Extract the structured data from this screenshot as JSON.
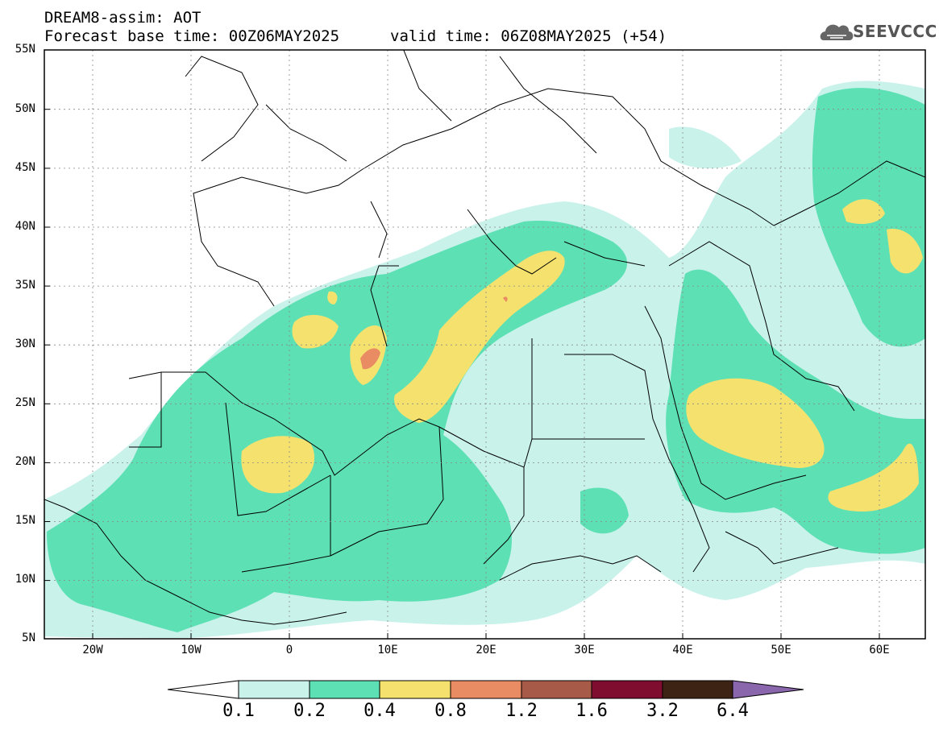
{
  "header": {
    "title": "DREAM8-assim: AOT",
    "base_time": "Forecast base time: 00Z06MAY2025",
    "valid_time": "valid time: 06Z08MAY2025 (+54)",
    "logo_text": "SEEVCCC"
  },
  "axes": {
    "lat_labels": [
      "55N",
      "50N",
      "45N",
      "40N",
      "35N",
      "30N",
      "25N",
      "20N",
      "15N",
      "10N",
      "5N"
    ],
    "lon_labels": [
      "20W",
      "10W",
      "0",
      "10E",
      "20E",
      "30E",
      "40E",
      "50E",
      "60E"
    ]
  },
  "colorbar": {
    "labels": [
      "0.1",
      "0.2",
      "0.4",
      "0.8",
      "1.2",
      "1.6",
      "3.2",
      "6.4"
    ],
    "colors": [
      "#ffffff",
      "#c9f2ea",
      "#5ee0b5",
      "#f5e26e",
      "#e98c63",
      "#a85a49",
      "#7f0d2f",
      "#3d2314",
      "#8a66ad"
    ]
  },
  "colors": {
    "aot_0_1_0_2": "#c9f2ea",
    "aot_0_2_0_4": "#5ee0b5",
    "aot_0_4_0_8": "#f5e26e",
    "aot_0_8_1_2": "#e98c63",
    "background": "#ffffff",
    "border": "#000000"
  }
}
